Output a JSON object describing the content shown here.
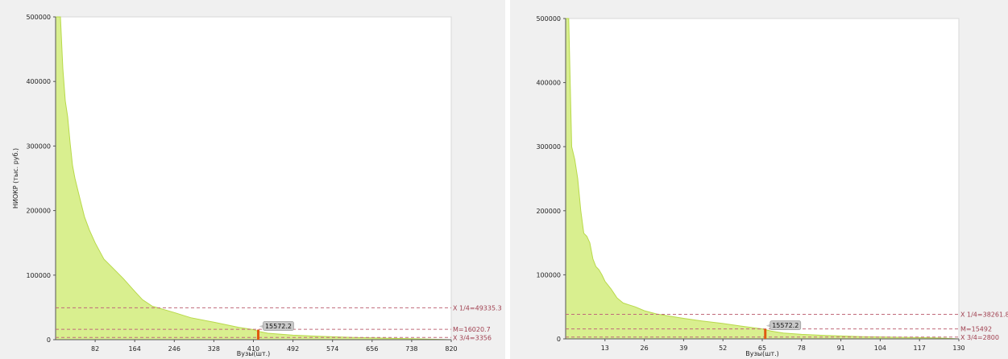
{
  "colors": {
    "fill": "#d9ef8f",
    "line": "#b8d94a",
    "refline": "#c06a7a",
    "reftext": "#a04050",
    "marker": "#e05a10",
    "bubble": "#c8c8c8"
  },
  "chart_data": [
    {
      "type": "area",
      "title": "",
      "xlabel": "Вузы(шт.)",
      "ylabel": "НИОКР (тыс. руб.)",
      "xlim": [
        0,
        820
      ],
      "ylim": [
        0,
        500000
      ],
      "grid": false,
      "yticks": [
        "0",
        "100000",
        "200000",
        "300000",
        "400000",
        "500000"
      ],
      "xticks": [
        "82",
        "164",
        "246",
        "328",
        "410",
        "492",
        "574",
        "656",
        "738",
        "820"
      ],
      "series": [
        {
          "x": [
            0,
            10,
            15,
            20,
            25,
            30,
            35,
            40,
            50,
            60,
            70,
            82,
            100,
            120,
            140,
            164,
            180,
            200,
            246,
            280,
            328,
            380,
            410,
            420,
            440,
            492,
            540,
            574,
            620,
            656,
            700,
            738,
            780,
            820
          ],
          "values": [
            500000,
            500000,
            420000,
            370000,
            345000,
            305000,
            270000,
            250000,
            220000,
            190000,
            170000,
            150000,
            125000,
            110000,
            95000,
            75000,
            62000,
            52000,
            42000,
            34000,
            27000,
            19000,
            15572,
            13000,
            10000,
            7000,
            5500,
            4500,
            3500,
            2800,
            2000,
            1500,
            800,
            0
          ]
        }
      ],
      "annotations": {
        "quartile_1": {
          "y": 49335.3,
          "label": "X 1/4=49335.3"
        },
        "median": {
          "y": 16020.7,
          "label": "M=16020.7"
        },
        "quartile_3": {
          "y": 3356,
          "label": "X 3/4=3356"
        },
        "marker": {
          "x": 420,
          "y": 15572.2,
          "label": "15572.2"
        }
      }
    },
    {
      "type": "area",
      "title": "",
      "xlabel": "Вузы(шт.)",
      "ylabel": "НИОКР (тыс. руб.)",
      "xlim": [
        0,
        130
      ],
      "ylim": [
        0,
        500000
      ],
      "grid": false,
      "yticks": [
        "0",
        "100000",
        "200000",
        "300000",
        "400000",
        "500000"
      ],
      "xticks": [
        "13",
        "26",
        "39",
        "52",
        "65",
        "78",
        "91",
        "104",
        "117",
        "130"
      ],
      "series": [
        {
          "x": [
            0,
            1,
            2,
            3,
            4,
            5,
            6,
            7,
            8,
            9,
            10,
            11,
            12,
            13,
            15,
            17,
            19,
            21,
            23,
            26,
            30,
            35,
            39,
            45,
            52,
            58,
            65,
            68,
            72,
            78,
            85,
            91,
            98,
            104,
            110,
            117,
            122,
            126,
            128,
            130
          ],
          "values": [
            500000,
            500000,
            300000,
            280000,
            250000,
            200000,
            165000,
            160000,
            150000,
            125000,
            113000,
            108000,
            100000,
            90000,
            78000,
            64000,
            56000,
            53000,
            50000,
            44000,
            39000,
            35000,
            32000,
            28000,
            24000,
            20000,
            15572,
            12000,
            9000,
            7000,
            5500,
            4500,
            3500,
            3000,
            2500,
            2000,
            1500,
            1000,
            500,
            0
          ]
        }
      ],
      "annotations": {
        "quartile_1": {
          "y": 38261.8,
          "label": "X 1/4=38261.8"
        },
        "median": {
          "y": 15492,
          "label": "M=15492"
        },
        "quartile_3": {
          "y": 2800,
          "label": "X 3/4=2800"
        },
        "marker": {
          "x": 66,
          "y": 15572.2,
          "label": "15572.2"
        }
      }
    }
  ]
}
